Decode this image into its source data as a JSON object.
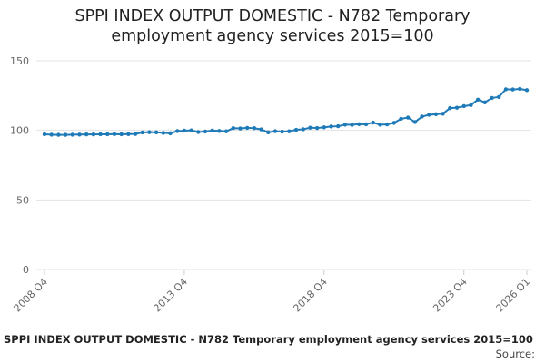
{
  "chart_data": {
    "type": "line",
    "title": "SPPI INDEX OUTPUT DOMESTIC - N782 Temporary employment agency services 2015=100",
    "categories": [
      "2008 Q4",
      null,
      null,
      null,
      null,
      null,
      null,
      null,
      null,
      null,
      null,
      null,
      null,
      null,
      null,
      null,
      null,
      null,
      null,
      null,
      "2013 Q4",
      null,
      null,
      null,
      null,
      null,
      null,
      null,
      null,
      null,
      null,
      null,
      null,
      null,
      null,
      null,
      null,
      null,
      null,
      null,
      "2018 Q4",
      null,
      null,
      null,
      null,
      null,
      null,
      null,
      null,
      null,
      null,
      null,
      null,
      null,
      null,
      null,
      null,
      null,
      null,
      null,
      "2023 Q4",
      null,
      null,
      null,
      null,
      null,
      null,
      null,
      null,
      "2026 Q1"
    ],
    "series": [
      {
        "name": "SPPI INDEX OUTPUT DOMESTIC - N782 Temporary employment agency services 2015=100",
        "color": "#1f7ab8",
        "values": [
          97.2,
          96.9,
          96.8,
          96.8,
          96.9,
          97.0,
          97.1,
          97.1,
          97.2,
          97.2,
          97.3,
          97.2,
          97.3,
          97.4,
          98.5,
          98.7,
          98.6,
          98.2,
          97.9,
          99.5,
          99.8,
          100.0,
          98.8,
          99.2,
          99.9,
          99.6,
          99.3,
          101.6,
          101.4,
          101.8,
          101.6,
          100.7,
          98.6,
          99.4,
          99.1,
          99.3,
          100.4,
          100.8,
          101.9,
          101.7,
          102.2,
          102.8,
          103.0,
          104.1,
          104.0,
          104.5,
          104.4,
          105.6,
          104.1,
          104.3,
          105.4,
          108.3,
          109.2,
          106.0,
          109.9,
          111.2,
          111.6,
          112.0,
          116.0,
          116.3,
          117.4,
          118.2,
          122.1,
          120.1,
          123.3,
          124.0,
          129.5,
          129.4,
          129.8,
          128.9
        ]
      }
    ],
    "ylim": [
      0,
      150
    ],
    "yticks": [
      0,
      50,
      100,
      150
    ],
    "grid": true,
    "source": "Source:"
  }
}
